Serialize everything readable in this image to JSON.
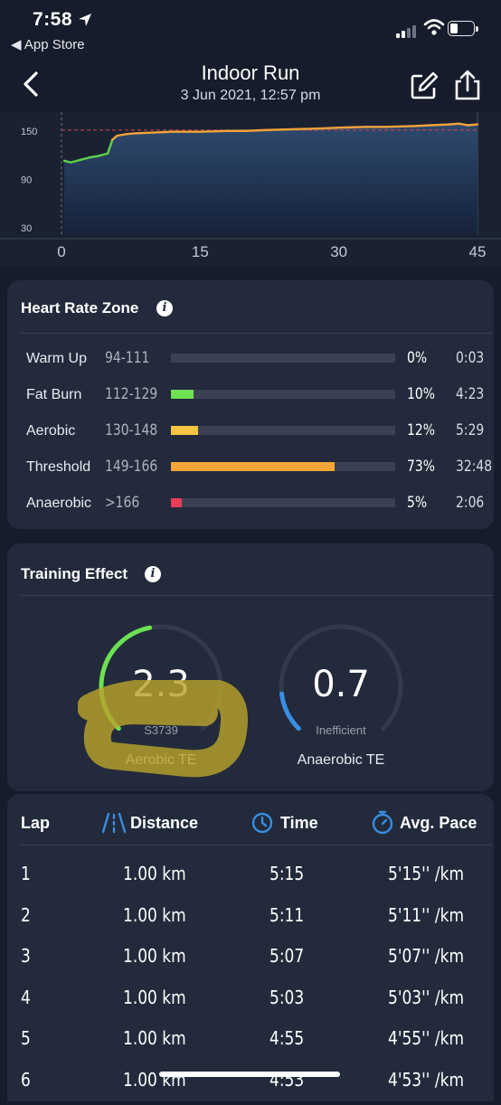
{
  "status_bar": {
    "time": "7:58",
    "back_label": "◀ App Store"
  },
  "header": {
    "title": "Indoor Run",
    "subtitle": "3 Jun 2021, 12:57 pm"
  },
  "icons": {
    "back": "chevron-left-icon",
    "edit": "edit-icon",
    "share": "share-icon",
    "info": "info-icon",
    "distance": "road-icon",
    "time": "clock-icon",
    "pace": "stopwatch-icon"
  },
  "chart_data": {
    "type": "area",
    "y_ticks": [
      "150",
      "90",
      "30"
    ],
    "x_ticks": [
      "0",
      "15",
      "30",
      "45"
    ],
    "xlim": [
      0,
      45
    ],
    "ylim": [
      20,
      170
    ],
    "threshold": 150,
    "x": [
      0.3,
      1,
      2,
      3,
      4,
      5,
      5.5,
      6,
      7,
      8,
      10,
      12,
      15,
      18,
      20,
      22,
      25,
      28,
      30,
      33,
      35,
      38,
      40,
      42,
      43,
      44,
      45
    ],
    "y": [
      112,
      110,
      113,
      116,
      118,
      121,
      138,
      143,
      145,
      146,
      147,
      148,
      148,
      149,
      149,
      150,
      151,
      152,
      153,
      154,
      154,
      155,
      156,
      157,
      158,
      156,
      157
    ],
    "colors": {
      "line_low": "#5fd14a",
      "line_high": "#f2a33a",
      "threshold": "#d9434b",
      "fill_top": "#2e4a6e",
      "fill_bottom": "#16223a"
    }
  },
  "hr_zone": {
    "title": "Heart Rate Zone",
    "zones": [
      {
        "name": "Warm Up",
        "range": "94-111",
        "percent": "0%",
        "fraction": 0.0,
        "time": "0:03",
        "color": "#9aa0ab"
      },
      {
        "name": "Fat Burn",
        "range": "112-129",
        "percent": "10%",
        "fraction": 0.1,
        "time": "4:23",
        "color": "#6de054"
      },
      {
        "name": "Aerobic",
        "range": "130-148",
        "percent": "12%",
        "fraction": 0.12,
        "time": "5:29",
        "color": "#f6c443"
      },
      {
        "name": "Threshold",
        "range": "149-166",
        "percent": "73%",
        "fraction": 0.73,
        "time": "32:48",
        "color": "#f3a536"
      },
      {
        "name": "Anaerobic",
        "range": ">166",
        "percent": "5%",
        "fraction": 0.05,
        "time": "2:06",
        "color": "#e83c57"
      }
    ]
  },
  "training_effect": {
    "title": "Training Effect",
    "aerobic": {
      "value": "2.3",
      "sub": "S3739",
      "label": "Aerobic TE",
      "level": 0.46,
      "color": "#6de054"
    },
    "anaerobic": {
      "value": "0.7",
      "sub": "Inefficient",
      "label": "Anaerobic TE",
      "level": 0.14,
      "color": "#3a8de0"
    }
  },
  "laps": {
    "headers": {
      "lap": "Lap",
      "distance": "Distance",
      "time": "Time",
      "pace": "Avg. Pace"
    },
    "accent": "#3a8de0",
    "rows": [
      {
        "lap": "1",
        "distance": "1.00 km",
        "time": "5:15",
        "pace": "5'15'' /km"
      },
      {
        "lap": "2",
        "distance": "1.00 km",
        "time": "5:11",
        "pace": "5'11'' /km"
      },
      {
        "lap": "3",
        "distance": "1.00 km",
        "time": "5:07",
        "pace": "5'07'' /km"
      },
      {
        "lap": "4",
        "distance": "1.00 km",
        "time": "5:03",
        "pace": "5'03'' /km"
      },
      {
        "lap": "5",
        "distance": "1.00 km",
        "time": "4:55",
        "pace": "4'55'' /km"
      },
      {
        "lap": "6",
        "distance": "1.00 km",
        "time": "4:53",
        "pace": "4'53'' /km"
      }
    ]
  }
}
